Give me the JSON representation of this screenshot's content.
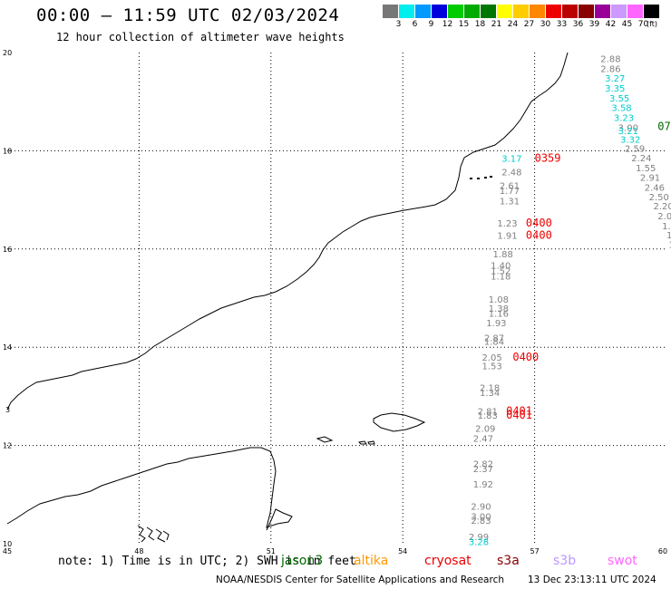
{
  "header": {
    "title": "00:00 — 11:59 UTC 02/03/2024",
    "subtitle": "12 hour collection of altimeter wave heights"
  },
  "color_scale": {
    "swatches": [
      "#777777",
      "#00eeee",
      "#0099ff",
      "#0000dd",
      "#00cc00",
      "#00aa00",
      "#007700",
      "#ffff00",
      "#ffcc00",
      "#ff8800",
      "#ee0000",
      "#bb0000",
      "#880000",
      "#990099",
      "#cc99ff",
      "#ff66ff",
      "#000000"
    ],
    "ticks": [
      "3",
      "6",
      "9",
      "12",
      "15",
      "18",
      "21",
      "24",
      "27",
      "30",
      "33",
      "36",
      "39",
      "42",
      "45",
      "70"
    ],
    "unit": "(ft)"
  },
  "map": {
    "lon_labels": [
      "45",
      "48",
      "51",
      "54",
      "57",
      "60"
    ],
    "lat_labels": [
      "20",
      "18",
      "16",
      "14",
      "12",
      "10"
    ],
    "lon_range": [
      45,
      60
    ],
    "lat_range": [
      10,
      20
    ],
    "side_tick": "3"
  },
  "track_colors": {
    "gray": "#808080",
    "cyan": "#00cccc",
    "red": "#ee0000",
    "green": "#006600"
  },
  "track_labels": [
    {
      "text": "2.88",
      "lon": 58.5,
      "lat": 19.88,
      "color": "gray"
    },
    {
      "text": "2.86",
      "lon": 58.5,
      "lat": 19.68,
      "color": "gray"
    },
    {
      "text": "3.27",
      "lon": 58.6,
      "lat": 19.48,
      "color": "cyan"
    },
    {
      "text": "3.35",
      "lon": 58.6,
      "lat": 19.28,
      "color": "cyan"
    },
    {
      "text": "3.55",
      "lon": 58.7,
      "lat": 19.08,
      "color": "cyan"
    },
    {
      "text": "3.58",
      "lon": 58.75,
      "lat": 18.88,
      "color": "cyan"
    },
    {
      "text": "3.23",
      "lon": 58.8,
      "lat": 18.68,
      "color": "cyan"
    },
    {
      "text": "3.00",
      "lon": 58.9,
      "lat": 18.48,
      "color": "gray"
    },
    {
      "text": "3.21",
      "lon": 58.9,
      "lat": 18.41,
      "color": "cyan"
    },
    {
      "text": "3.32",
      "lon": 58.95,
      "lat": 18.24,
      "color": "cyan"
    },
    {
      "text": "07",
      "lon": 59.8,
      "lat": 18.5,
      "color": "green"
    },
    {
      "text": "2.59",
      "lon": 59.05,
      "lat": 18.05,
      "color": "gray"
    },
    {
      "text": "2.24",
      "lon": 59.2,
      "lat": 17.86,
      "color": "gray"
    },
    {
      "text": "1.55",
      "lon": 59.3,
      "lat": 17.66,
      "color": "gray"
    },
    {
      "text": "2.91",
      "lon": 59.4,
      "lat": 17.46,
      "color": "gray"
    },
    {
      "text": "2.46",
      "lon": 59.5,
      "lat": 17.26,
      "color": "gray"
    },
    {
      "text": "2.50",
      "lon": 59.6,
      "lat": 17.07,
      "color": "gray"
    },
    {
      "text": "2.20",
      "lon": 59.7,
      "lat": 16.88,
      "color": "gray"
    },
    {
      "text": "2.0",
      "lon": 59.8,
      "lat": 16.68,
      "color": "gray"
    },
    {
      "text": "1.",
      "lon": 59.9,
      "lat": 16.48,
      "color": "gray"
    },
    {
      "text": "1",
      "lon": 60.0,
      "lat": 16.29,
      "color": "gray"
    },
    {
      "text": "1",
      "lon": 60.05,
      "lat": 16.1,
      "color": "gray"
    },
    {
      "text": "3.17",
      "lon": 56.25,
      "lat": 17.85,
      "color": "cyan"
    },
    {
      "text": "0359",
      "lon": 57.0,
      "lat": 17.85,
      "color": "red"
    },
    {
      "text": "2.48",
      "lon": 56.25,
      "lat": 17.57,
      "color": "gray"
    },
    {
      "text": "2.61",
      "lon": 56.2,
      "lat": 17.3,
      "color": "gray"
    },
    {
      "text": "1.77",
      "lon": 56.2,
      "lat": 17.2,
      "color": "gray"
    },
    {
      "text": "1.31",
      "lon": 56.2,
      "lat": 16.98,
      "color": "gray"
    },
    {
      "text": "1.23",
      "lon": 56.15,
      "lat": 16.53,
      "color": "gray"
    },
    {
      "text": "0400",
      "lon": 56.8,
      "lat": 16.53,
      "color": "red"
    },
    {
      "text": "1.91",
      "lon": 56.15,
      "lat": 16.28,
      "color": "gray"
    },
    {
      "text": "0400",
      "lon": 56.8,
      "lat": 16.28,
      "color": "red"
    },
    {
      "text": "1.88",
      "lon": 56.05,
      "lat": 15.9,
      "color": "gray"
    },
    {
      "text": "1.40",
      "lon": 56.0,
      "lat": 15.67,
      "color": "gray"
    },
    {
      "text": "1.52",
      "lon": 56.0,
      "lat": 15.56,
      "color": "gray"
    },
    {
      "text": "1.18",
      "lon": 56.0,
      "lat": 15.45,
      "color": "gray"
    },
    {
      "text": "1.08",
      "lon": 55.95,
      "lat": 14.98,
      "color": "gray"
    },
    {
      "text": "1.38",
      "lon": 55.95,
      "lat": 14.8,
      "color": "gray"
    },
    {
      "text": "1.16",
      "lon": 55.95,
      "lat": 14.7,
      "color": "gray"
    },
    {
      "text": "1.93",
      "lon": 55.9,
      "lat": 14.5,
      "color": "gray"
    },
    {
      "text": "2.87",
      "lon": 55.85,
      "lat": 14.2,
      "color": "gray"
    },
    {
      "text": "1.84",
      "lon": 55.85,
      "lat": 14.12,
      "color": "gray"
    },
    {
      "text": "2.05",
      "lon": 55.8,
      "lat": 13.8,
      "color": "gray"
    },
    {
      "text": "0400",
      "lon": 56.5,
      "lat": 13.8,
      "color": "red"
    },
    {
      "text": "1.53",
      "lon": 55.8,
      "lat": 13.63,
      "color": "gray"
    },
    {
      "text": "2.18",
      "lon": 55.75,
      "lat": 13.18,
      "color": "gray"
    },
    {
      "text": "1.34",
      "lon": 55.75,
      "lat": 13.08,
      "color": "gray"
    },
    {
      "text": "2.81",
      "lon": 55.7,
      "lat": 12.7,
      "color": "gray"
    },
    {
      "text": "0401",
      "lon": 56.35,
      "lat": 12.7,
      "color": "red"
    },
    {
      "text": "1.83",
      "lon": 55.7,
      "lat": 12.62,
      "color": "gray"
    },
    {
      "text": "0401",
      "lon": 56.35,
      "lat": 12.62,
      "color": "red"
    },
    {
      "text": "2.09",
      "lon": 55.65,
      "lat": 12.35,
      "color": "gray"
    },
    {
      "text": "2.47",
      "lon": 55.6,
      "lat": 12.15,
      "color": "gray"
    },
    {
      "text": "2.82",
      "lon": 55.6,
      "lat": 11.63,
      "color": "gray"
    },
    {
      "text": "2.37",
      "lon": 55.6,
      "lat": 11.53,
      "color": "gray"
    },
    {
      "text": "1.92",
      "lon": 55.6,
      "lat": 11.22,
      "color": "gray"
    },
    {
      "text": "2.90",
      "lon": 55.55,
      "lat": 10.77,
      "color": "gray"
    },
    {
      "text": "3.00",
      "lon": 55.55,
      "lat": 10.56,
      "color": "gray"
    },
    {
      "text": "2.83",
      "lon": 55.55,
      "lat": 10.48,
      "color": "gray"
    },
    {
      "text": "2.99",
      "lon": 55.5,
      "lat": 10.15,
      "color": "gray"
    },
    {
      "text": "3.28",
      "lon": 55.5,
      "lat": 10.05,
      "color": "cyan"
    }
  ],
  "footer": {
    "note": "note: 1) Time is in UTC; 2) SWH is in feet",
    "satellites": [
      {
        "name": "jason3",
        "color": "#006600"
      },
      {
        "name": "altika",
        "color": "#ff9900"
      },
      {
        "name": "cryosat",
        "color": "#ee0000"
      },
      {
        "name": "s3a",
        "color": "#880000"
      },
      {
        "name": "s3b",
        "color": "#bb99ff"
      },
      {
        "name": "swot",
        "color": "#ff66ff"
      }
    ],
    "credit": "NOAA/NESDIS Center for Satellite Applications and Research",
    "timestamp": "13 Dec 23:13:11 UTC 2024"
  }
}
